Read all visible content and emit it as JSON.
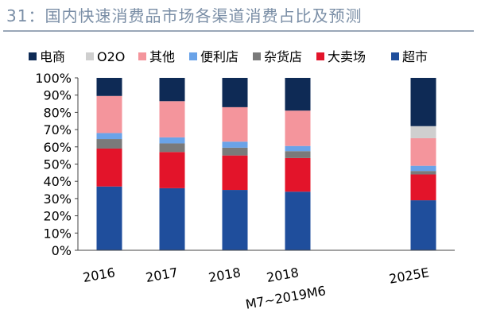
{
  "title": "31：国内快速消费品市场各渠道消费占比及预测",
  "chart_data": {
    "type": "bar",
    "stacked": true,
    "title": "31：国内快速消费品市场各渠道消费占比及预测",
    "categories": [
      "2016",
      "2017",
      "2018",
      "2018M7~2019M6",
      "2025E"
    ],
    "category_slots": [
      0,
      1,
      2,
      3,
      5
    ],
    "ylim": [
      0,
      100
    ],
    "yticks": [
      0,
      10,
      20,
      30,
      40,
      50,
      60,
      70,
      80,
      90,
      100
    ],
    "ytick_labels": [
      "0%",
      "10%",
      "20%",
      "30%",
      "40%",
      "50%",
      "60%",
      "70%",
      "80%",
      "90%",
      "100%"
    ],
    "legend_position": "top",
    "series": [
      {
        "name": "超市",
        "color": "#1f4e9c",
        "values": [
          37,
          36,
          35,
          34,
          29
        ]
      },
      {
        "name": "大卖场",
        "color": "#e3142a",
        "values": [
          22,
          21,
          20,
          19.5,
          15
        ]
      },
      {
        "name": "杂货店",
        "color": "#7a7a7a",
        "values": [
          5.5,
          5,
          4.5,
          4,
          2
        ]
      },
      {
        "name": "便利店",
        "color": "#6aa3e8",
        "values": [
          3.5,
          3.5,
          3.5,
          3,
          3
        ]
      },
      {
        "name": "其他",
        "color": "#f4959c",
        "values": [
          21.5,
          21,
          20,
          20.5,
          16
        ]
      },
      {
        "name": "O2O",
        "color": "#cfcfcf",
        "values": [
          0,
          0,
          0,
          0,
          7
        ]
      },
      {
        "name": "电商",
        "color": "#0e2a55",
        "values": [
          10.5,
          13.5,
          17,
          19,
          28
        ]
      }
    ],
    "legend_order": [
      "电商",
      "O2O",
      "其他",
      "便利店",
      "杂货店",
      "大卖场",
      "超市"
    ]
  }
}
